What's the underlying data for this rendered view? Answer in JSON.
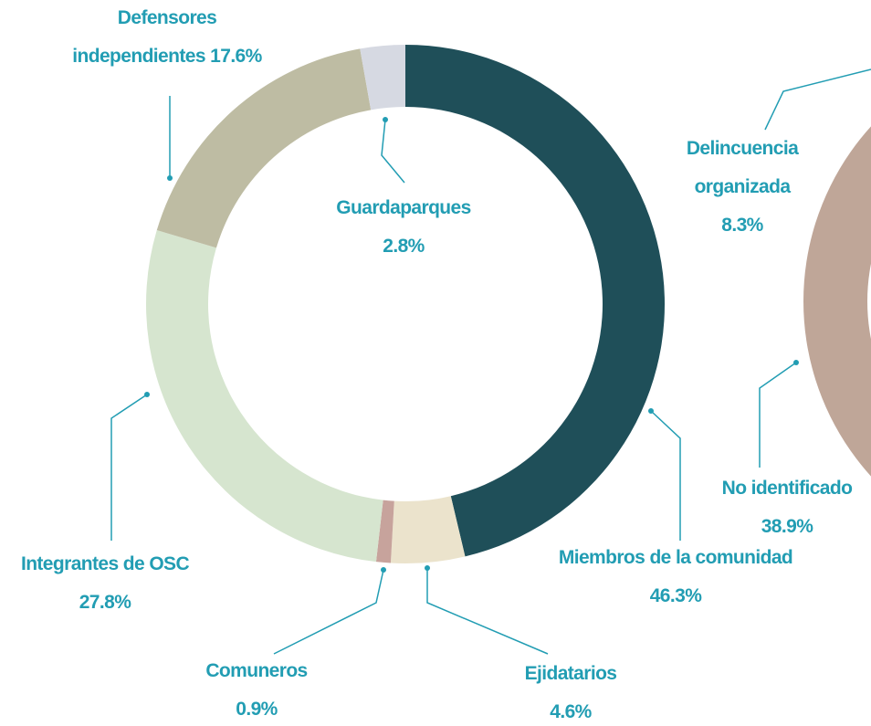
{
  "chart_data": [
    {
      "type": "donut",
      "categories": [
        "Miembros de la comunidad",
        "Ejidatarios",
        "Comuneros",
        "Integrantes de OSC",
        "Defensores independientes",
        "Guardaparques"
      ],
      "values": [
        46.3,
        4.6,
        0.9,
        27.8,
        17.6,
        2.8
      ],
      "value_labels": [
        "46.3%",
        "4.6%",
        "0.9%",
        "27.8%",
        "17.6%",
        "2.8%"
      ],
      "colors": [
        "#1f4f59",
        "#ebe3cc",
        "#c7a39c",
        "#d6e5cf",
        "#bebca3",
        "#d6d9e2"
      ]
    },
    {
      "type": "donut",
      "categories": [
        "No identificado",
        "Delincuencia organizada"
      ],
      "values": [
        38.9,
        8.3
      ],
      "value_labels": [
        "38.9%",
        "8.3%"
      ],
      "colors": [
        "#bfa698",
        "#9c8273"
      ]
    }
  ]
}
